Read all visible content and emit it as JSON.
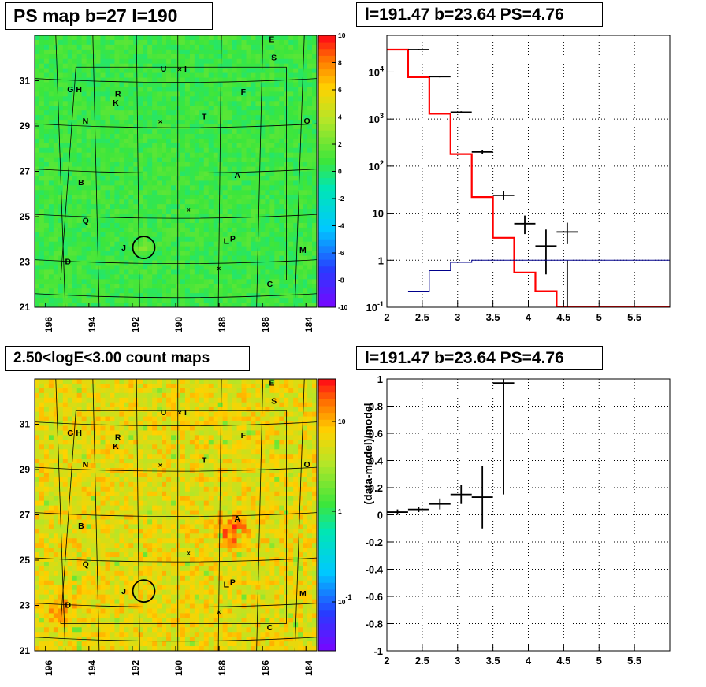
{
  "titles": {
    "map1": "PS map b=27 l=190",
    "spec": "l=191.47 b=23.64 PS=4.76",
    "map2": "2.50<logE<3.00 count maps",
    "resid": "l=191.47 b=23.64 PS=4.76"
  },
  "colors": {
    "data": "#000000",
    "model": "#ff0000",
    "background": "#00008b",
    "map1_fill": "#33dd33",
    "map2_fill": "#eec833"
  },
  "chart_data": [
    {
      "type": "heatmap",
      "title": "PS map b=27 l=190",
      "x_ticks": [
        "196",
        "194",
        "192",
        "190",
        "188",
        "186",
        "184"
      ],
      "y_ticks": [
        "21",
        "23",
        "25",
        "27",
        "29",
        "31"
      ],
      "xlim": [
        196.5,
        183.5
      ],
      "ylim": [
        21,
        33
      ],
      "colorbar_ticks": [
        "10",
        "8",
        "6",
        "4",
        "2",
        "0",
        "-2",
        "-4",
        "-6",
        "-8",
        "-10"
      ],
      "colorbar_range": [
        -10,
        10
      ],
      "background_level": 1,
      "labels": [
        {
          "t": "E",
          "x": 185.7,
          "y": 32.7
        },
        {
          "t": "S",
          "x": 185.6,
          "y": 31.9
        },
        {
          "t": "U",
          "x": 190.7,
          "y": 31.4
        },
        {
          "t": "I",
          "x": 189.6,
          "y": 31.4
        },
        {
          "t": "G",
          "x": 195.0,
          "y": 30.5
        },
        {
          "t": "H",
          "x": 194.6,
          "y": 30.5
        },
        {
          "t": "R",
          "x": 192.8,
          "y": 30.3
        },
        {
          "t": "K",
          "x": 192.9,
          "y": 29.9
        },
        {
          "t": "F",
          "x": 187.0,
          "y": 30.4
        },
        {
          "t": "N",
          "x": 194.3,
          "y": 29.1
        },
        {
          "t": "T",
          "x": 188.8,
          "y": 29.3
        },
        {
          "t": "O",
          "x": 184.1,
          "y": 29.1
        },
        {
          "t": "A",
          "x": 187.3,
          "y": 26.7
        },
        {
          "t": "B",
          "x": 194.5,
          "y": 26.4
        },
        {
          "t": "Q",
          "x": 194.3,
          "y": 24.7
        },
        {
          "t": "L",
          "x": 187.8,
          "y": 23.8
        },
        {
          "t": "P",
          "x": 187.5,
          "y": 23.9
        },
        {
          "t": "J",
          "x": 192.5,
          "y": 23.5
        },
        {
          "t": "M",
          "x": 184.3,
          "y": 23.4
        },
        {
          "t": "D",
          "x": 195.1,
          "y": 22.9
        },
        {
          "t": "C",
          "x": 185.8,
          "y": 21.9
        }
      ],
      "crosses": [
        [
          189.8,
          31.5
        ],
        [
          190.7,
          29.2
        ],
        [
          189.4,
          25.3
        ],
        [
          188.0,
          22.7
        ]
      ],
      "circle": {
        "x": 191.47,
        "y": 23.64,
        "r": 0.45
      }
    },
    {
      "type": "line",
      "title": "l=191.47 b=23.64 PS=4.76",
      "xlabel": "",
      "ylabel": "",
      "y_scale": "log",
      "xlim": [
        2,
        6
      ],
      "ylim": [
        0.1,
        60000
      ],
      "x_ticks": [
        "2",
        "2.5",
        "3",
        "3.5",
        "4",
        "4.5",
        "5",
        "5.5"
      ],
      "y_ticks": [
        "10^-1",
        "1",
        "10",
        "10^2",
        "10^3",
        "10^4"
      ],
      "grid": true,
      "series": [
        {
          "style": "step",
          "role": "model",
          "color": "#ff0000",
          "bins": [
            2.0,
            2.3,
            2.6,
            2.9,
            3.2,
            3.5,
            3.8,
            4.1,
            4.4,
            6.0
          ],
          "values": [
            30000,
            7800,
            1300,
            180,
            22,
            3.0,
            0.55,
            0.22,
            0.1
          ]
        },
        {
          "style": "errorbars",
          "role": "data",
          "color": "#000000",
          "x": [
            2.45,
            2.75,
            3.05,
            3.35,
            3.65,
            3.95,
            4.25,
            4.55
          ],
          "xerr": 0.15,
          "y": [
            30000,
            8000,
            1400,
            200,
            24,
            6,
            2,
            4
          ],
          "ylo": [
            29000,
            7700,
            1330,
            180,
            19,
            3.6,
            0.5,
            2.2
          ],
          "yhi": [
            31000,
            8300,
            1470,
            220,
            29,
            8.9,
            4.5,
            6.3
          ]
        },
        {
          "style": "errorbars",
          "role": "data",
          "color": "#000000",
          "x": [
            4.55
          ],
          "xerr": 0,
          "y": [
            0.1
          ],
          "ylo": [
            0.1
          ],
          "yhi": [
            1.0
          ]
        },
        {
          "style": "step",
          "role": "background",
          "color": "#00008b",
          "bins": [
            2.3,
            2.6,
            2.9,
            3.2,
            3.5,
            3.8,
            4.1,
            4.4,
            4.7,
            6.0
          ],
          "values": [
            0.22,
            0.6,
            0.9,
            1.0,
            1.0,
            1.0,
            1.0,
            1.0,
            1.0
          ]
        }
      ]
    },
    {
      "type": "heatmap",
      "title": "2.50<logE<3.00 count maps",
      "x_ticks": [
        "196",
        "194",
        "192",
        "190",
        "188",
        "186",
        "184"
      ],
      "y_ticks": [
        "21",
        "23",
        "25",
        "27",
        "29",
        "31"
      ],
      "colorbar_ticks": [
        "10",
        "1",
        "10^-1"
      ],
      "colorbar_scale": "log",
      "hotspots": [
        {
          "label": "A",
          "x": 187.4,
          "y": 26.3,
          "strength": 0.9
        },
        {
          "label": "D",
          "x": 195.3,
          "y": 22.8,
          "strength": 0.4
        }
      ]
    },
    {
      "type": "scatter",
      "title": "l=191.47 b=23.64 PS=4.76",
      "ylabel": "(data-model)/model",
      "xlim": [
        2,
        6
      ],
      "ylim": [
        -1,
        1
      ],
      "x_ticks": [
        "2",
        "2.5",
        "3",
        "3.5",
        "4",
        "4.5",
        "5",
        "5.5"
      ],
      "y_ticks": [
        "-1",
        "-0.8",
        "-0.6",
        "-0.4",
        "-0.2",
        "0",
        "0.2",
        "0.4",
        "0.6",
        "0.8",
        "1"
      ],
      "grid": true,
      "x": [
        2.15,
        2.45,
        2.75,
        3.05,
        3.35,
        3.65
      ],
      "xerr": 0.15,
      "y": [
        0.02,
        0.04,
        0.08,
        0.15,
        0.13,
        0.97
      ],
      "yerr_lo": [
        0.02,
        0.02,
        0.04,
        0.07,
        0.23,
        0.82
      ],
      "yerr_hi": [
        0.02,
        0.02,
        0.04,
        0.07,
        0.23,
        0.03
      ]
    }
  ]
}
